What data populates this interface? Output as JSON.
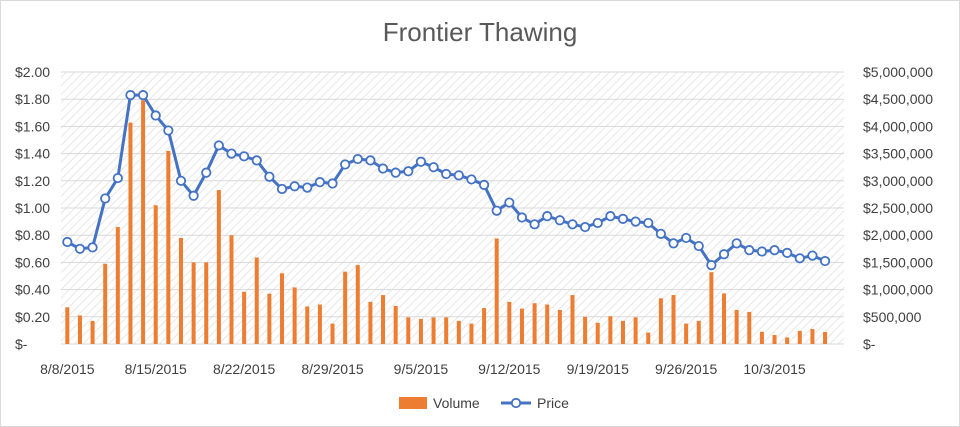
{
  "chart_data": {
    "type": "bar",
    "title": "Frontier Thawing",
    "y_left_ticks": [
      "$-",
      "$0.20",
      "$0.40",
      "$0.60",
      "$0.80",
      "$1.00",
      "$1.20",
      "$1.40",
      "$1.60",
      "$1.80",
      "$2.00"
    ],
    "y_right_ticks": [
      "$-",
      "$500,000",
      "$1,000,000",
      "$1,500,000",
      "$2,000,000",
      "$2,500,000",
      "$3,000,000",
      "$3,500,000",
      "$4,000,000",
      "$4,500,000",
      "$5,000,000"
    ],
    "ylim_left": [
      0,
      2.0
    ],
    "ylim_right": [
      0,
      5000000
    ],
    "x_tick_labels": [
      {
        "label": "8/8/2015",
        "day_index": 0
      },
      {
        "label": "8/15/2015",
        "day_index": 7
      },
      {
        "label": "8/22/2015",
        "day_index": 14
      },
      {
        "label": "8/29/2015",
        "day_index": 21
      },
      {
        "label": "9/5/2015",
        "day_index": 28
      },
      {
        "label": "9/12/2015",
        "day_index": 35
      },
      {
        "label": "9/19/2015",
        "day_index": 42
      },
      {
        "label": "9/26/2015",
        "day_index": 49
      },
      {
        "label": "10/3/2015",
        "day_index": 56
      }
    ],
    "start_date": "2015-08-08",
    "num_days": 62,
    "series": [
      {
        "name": "Volume",
        "type": "bar",
        "axis": "right",
        "color": "#ED7D31",
        "values": [
          675000,
          525000,
          425000,
          1475000,
          2150000,
          4070000,
          4480000,
          2550000,
          3550000,
          1950000,
          1500000,
          1500000,
          2830000,
          2000000,
          960000,
          1590000,
          925000,
          1300000,
          1040000,
          690000,
          725000,
          375000,
          1330000,
          1450000,
          775000,
          900000,
          700000,
          490000,
          460000,
          490000,
          490000,
          425000,
          375000,
          660000,
          1940000,
          775000,
          650000,
          750000,
          725000,
          625000,
          900000,
          500000,
          390000,
          510000,
          425000,
          490000,
          210000,
          840000,
          900000,
          375000,
          425000,
          1320000,
          930000,
          625000,
          590000,
          225000,
          165000,
          120000,
          240000,
          275000,
          220000,
          0
        ]
      },
      {
        "name": "Price",
        "type": "line",
        "axis": "left",
        "color": "#4472C4",
        "values": [
          0.75,
          0.7,
          0.71,
          1.07,
          1.22,
          1.83,
          1.83,
          1.68,
          1.57,
          1.2,
          1.09,
          1.26,
          1.46,
          1.4,
          1.38,
          1.35,
          1.23,
          1.14,
          1.16,
          1.15,
          1.19,
          1.18,
          1.32,
          1.36,
          1.35,
          1.29,
          1.26,
          1.27,
          1.34,
          1.3,
          1.25,
          1.24,
          1.21,
          1.17,
          0.98,
          1.04,
          0.93,
          0.88,
          0.94,
          0.91,
          0.88,
          0.86,
          0.89,
          0.94,
          0.92,
          0.9,
          0.89,
          0.81,
          0.74,
          0.78,
          0.72,
          0.58,
          0.66,
          0.74,
          0.69,
          0.68,
          0.69,
          0.67,
          0.63,
          0.65,
          0.61,
          null
        ]
      }
    ],
    "legend": {
      "placement": "bottom",
      "items": [
        "Volume",
        "Price"
      ]
    },
    "grid": true,
    "background_pattern": "diagonal-hatch"
  }
}
